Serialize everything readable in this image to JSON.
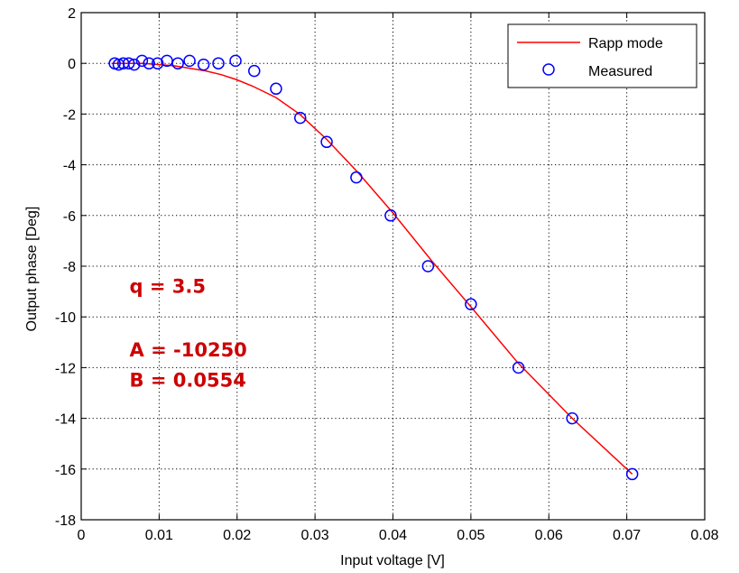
{
  "chart_data": {
    "type": "line",
    "xlabel": "Input voltage [V]",
    "ylabel": "Output phase [Deg]",
    "xlim": [
      0,
      0.08
    ],
    "ylim": [
      -18,
      2
    ],
    "xticks": [
      0,
      0.01,
      0.02,
      0.03,
      0.04,
      0.05,
      0.06,
      0.07,
      0.08
    ],
    "yticks": [
      2,
      0,
      -2,
      -4,
      -6,
      -8,
      -10,
      -12,
      -14,
      -16,
      -18
    ],
    "grid": true,
    "legend_position": "top-right",
    "series": [
      {
        "name": "Rapp mode",
        "style": "line",
        "color": "#ff0000",
        "x": [
          0.004,
          0.006,
          0.008,
          0.01,
          0.012,
          0.014,
          0.016,
          0.018,
          0.02,
          0.022,
          0.025,
          0.028,
          0.0315,
          0.0355,
          0.04,
          0.045,
          0.05,
          0.056,
          0.063,
          0.0707
        ],
        "y": [
          0,
          0,
          0,
          -0.05,
          -0.1,
          -0.2,
          -0.3,
          -0.45,
          -0.65,
          -0.9,
          -1.35,
          -2.0,
          -3.0,
          -4.3,
          -5.9,
          -7.8,
          -9.6,
          -11.8,
          -14.0,
          -16.2
        ]
      },
      {
        "name": "Measured",
        "style": "marker-circle",
        "color": "#0000ff",
        "x": [
          0.0043,
          0.0048,
          0.0054,
          0.0061,
          0.0068,
          0.0078,
          0.0087,
          0.0098,
          0.011,
          0.0124,
          0.0139,
          0.0157,
          0.0176,
          0.0198,
          0.0222,
          0.025,
          0.0281,
          0.0315,
          0.0353,
          0.0397,
          0.0445,
          0.05,
          0.0561,
          0.063,
          0.0707
        ],
        "y": [
          0,
          -0.05,
          0,
          0,
          -0.05,
          0.1,
          0,
          0,
          0.1,
          0,
          0.1,
          -0.05,
          0,
          0.1,
          -0.3,
          -1.0,
          -2.15,
          -3.1,
          -4.5,
          -6.0,
          -8.0,
          -9.5,
          -12.0,
          -14.0,
          -16.2
        ]
      }
    ],
    "annotations": [
      {
        "id": "q",
        "text": "q = 3.5",
        "x": 0.0062,
        "y": -9.05,
        "color": "#cc0000"
      },
      {
        "id": "A",
        "text": "A = -10250",
        "x": 0.0062,
        "y": -11.55,
        "color": "#cc0000"
      },
      {
        "id": "B",
        "text": "B = 0.0554",
        "x": 0.0062,
        "y": -12.75,
        "color": "#cc0000"
      }
    ]
  }
}
